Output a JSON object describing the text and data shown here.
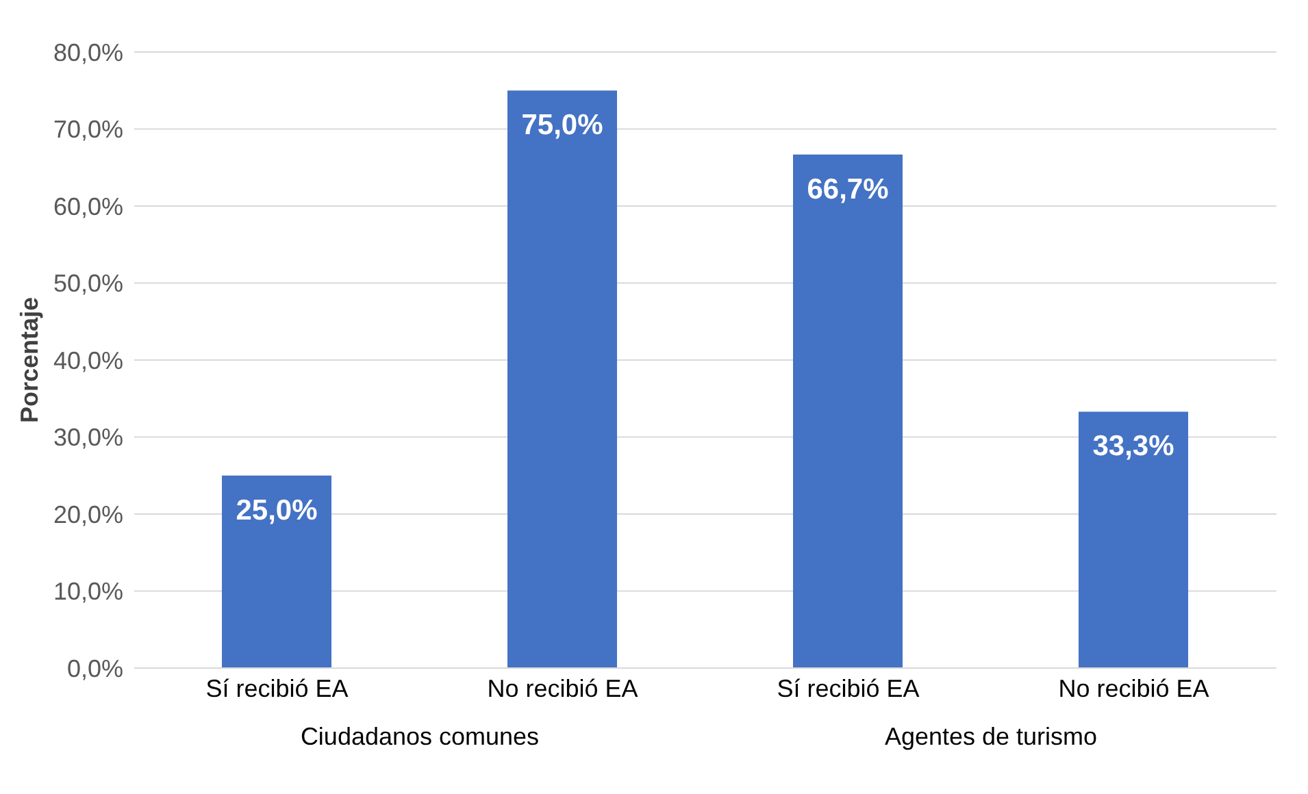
{
  "chart_data": {
    "type": "bar",
    "ylabel": "Porcentaje",
    "categories": [
      "Sí recibió EA",
      "No recibió EA",
      "Sí recibió EA",
      "No recibió EA"
    ],
    "values": [
      25.0,
      75.0,
      66.7,
      33.3
    ],
    "value_labels": [
      "25,0%",
      "75,0%",
      "66,7%",
      "33,3%"
    ],
    "color": "#4472c4",
    "ylim": [
      0,
      80
    ],
    "yticks": [
      {
        "value": 0,
        "label": "0,0%"
      },
      {
        "value": 10,
        "label": "10,0%"
      },
      {
        "value": 20,
        "label": "20,0%"
      },
      {
        "value": 30,
        "label": "30,0%"
      },
      {
        "value": 40,
        "label": "40,0%"
      },
      {
        "value": 50,
        "label": "50,0%"
      },
      {
        "value": 60,
        "label": "60,0%"
      },
      {
        "value": 70,
        "label": "70,0%"
      },
      {
        "value": 80,
        "label": "80,0%"
      }
    ],
    "grid": "y",
    "annotations": [
      "Ciudadanos comunes",
      "Agentes de turismo"
    ]
  }
}
